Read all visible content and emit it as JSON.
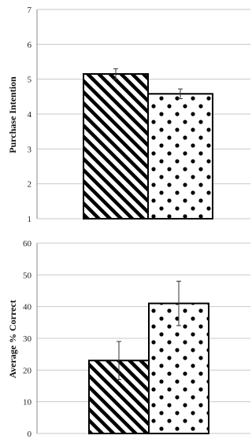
{
  "chart_data": [
    {
      "type": "bar",
      "ylabel": "Purchase Intention",
      "ylim": [
        1,
        7
      ],
      "yticks": [
        1,
        2,
        3,
        4,
        5,
        6,
        7
      ],
      "grid": true,
      "categories": [
        ""
      ],
      "series": [
        {
          "pattern": "diagonal-stripes",
          "values": [
            5.15
          ],
          "error": [
            0.15
          ]
        },
        {
          "pattern": "polka-dots",
          "values": [
            4.58
          ],
          "error": [
            0.14
          ]
        }
      ]
    },
    {
      "type": "bar",
      "ylabel": "Average % Correct",
      "ylim": [
        0,
        60
      ],
      "yticks": [
        0,
        10,
        20,
        30,
        40,
        50,
        60
      ],
      "grid": true,
      "categories": [
        ""
      ],
      "series": [
        {
          "pattern": "diagonal-stripes",
          "values": [
            23
          ],
          "error": [
            6
          ]
        },
        {
          "pattern": "polka-dots",
          "values": [
            41
          ],
          "error": [
            7
          ]
        }
      ]
    }
  ],
  "colors": {
    "bar_outline": "#000000",
    "grid": "#c8c8c8",
    "axis": "#888888"
  }
}
